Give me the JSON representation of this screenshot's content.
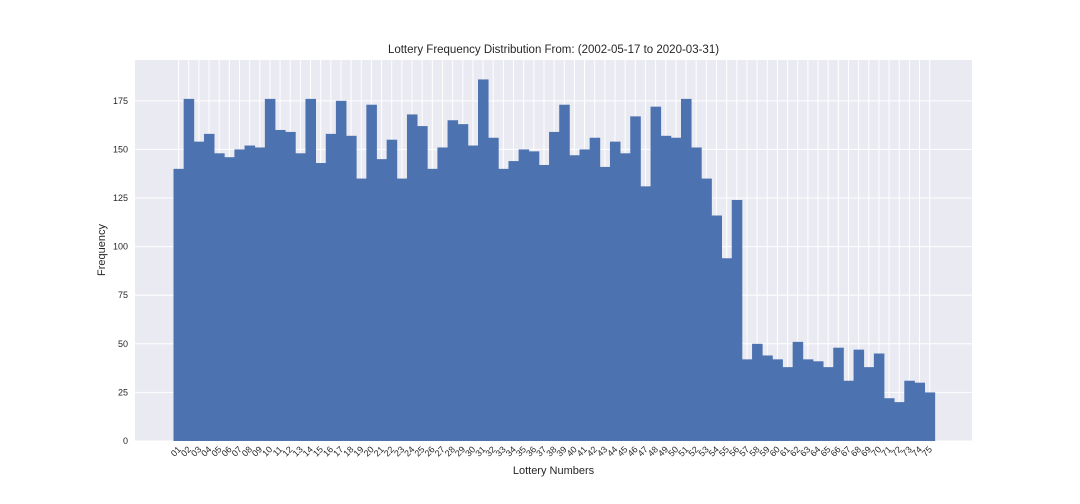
{
  "chart_data": {
    "type": "bar",
    "title": "Lottery Frequency Distribution From: (2002-05-17 to 2020-03-31)",
    "xlabel": "Lottery Numbers",
    "ylabel": "Frequency",
    "ylim": [
      0,
      196
    ],
    "yticks": [
      0,
      25,
      50,
      75,
      100,
      125,
      150,
      175
    ],
    "grid": true,
    "bar_color": "#4c72b0",
    "background_color": "#eaeaf2",
    "categories": [
      "01",
      "02",
      "03",
      "04",
      "05",
      "06",
      "07",
      "08",
      "09",
      "10",
      "11",
      "12",
      "13",
      "14",
      "15",
      "16",
      "17",
      "18",
      "19",
      "20",
      "21",
      "22",
      "23",
      "24",
      "25",
      "26",
      "27",
      "28",
      "29",
      "30",
      "31",
      "32",
      "33",
      "34",
      "35",
      "36",
      "37",
      "38",
      "39",
      "40",
      "41",
      "42",
      "43",
      "44",
      "45",
      "46",
      "47",
      "48",
      "49",
      "50",
      "51",
      "52",
      "53",
      "54",
      "55",
      "56",
      "57",
      "58",
      "59",
      "60",
      "61",
      "62",
      "63",
      "64",
      "65",
      "66",
      "67",
      "68",
      "69",
      "70",
      "71",
      "72",
      "73",
      "74",
      "75"
    ],
    "values": [
      140,
      176,
      154,
      158,
      148,
      146,
      150,
      152,
      151,
      176,
      160,
      159,
      148,
      176,
      143,
      158,
      175,
      157,
      135,
      173,
      145,
      155,
      135,
      168,
      162,
      140,
      151,
      165,
      163,
      152,
      186,
      156,
      140,
      144,
      150,
      149,
      142,
      159,
      173,
      147,
      150,
      156,
      141,
      154,
      148,
      167,
      131,
      172,
      157,
      156,
      176,
      151,
      135,
      116,
      94,
      124,
      42,
      50,
      44,
      42,
      38,
      51,
      42,
      41,
      38,
      48,
      31,
      47,
      38,
      45,
      22,
      20,
      31,
      30,
      25
    ]
  }
}
